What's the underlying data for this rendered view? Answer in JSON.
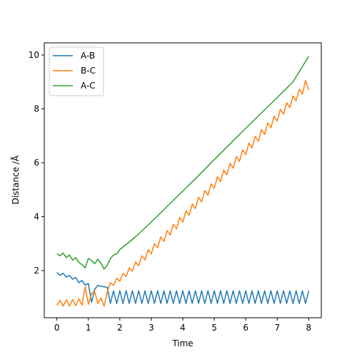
{
  "chart_data": {
    "type": "line",
    "xlabel": "Time",
    "ylabel": "Distance /Å",
    "xlim": [
      -0.4,
      8.4
    ],
    "ylim": [
      0.25,
      10.45
    ],
    "xticks": [
      0,
      1,
      2,
      3,
      4,
      5,
      6,
      7,
      8
    ],
    "yticks": [
      2,
      4,
      6,
      8,
      10
    ],
    "xtick_labels": [
      "0",
      "1",
      "2",
      "3",
      "4",
      "5",
      "6",
      "7",
      "8"
    ],
    "ytick_labels": [
      "2",
      "4",
      "6",
      "8",
      "10"
    ],
    "grid": false,
    "legend_position": "top-left",
    "series": [
      {
        "name": "A-B",
        "color": "#1f77b4",
        "x": [
          0,
          0.1,
          0.2,
          0.3,
          0.4,
          0.5,
          0.6,
          0.7,
          0.8,
          0.9,
          1.0,
          1.1,
          1.2,
          1.3,
          1.4,
          1.5,
          1.6,
          1.7,
          1.8,
          1.9,
          2.0,
          2.1,
          2.2,
          2.3,
          2.4,
          2.5,
          2.6,
          2.7,
          2.8,
          2.9,
          3.0,
          3.1,
          3.2,
          3.3,
          3.4,
          3.5,
          3.6,
          3.7,
          3.8,
          3.9,
          4.0,
          4.1,
          4.2,
          4.3,
          4.4,
          4.5,
          4.6,
          4.7,
          4.8,
          4.9,
          5.0,
          5.1,
          5.2,
          5.3,
          5.4,
          5.5,
          5.6,
          5.7,
          5.8,
          5.9,
          6.0,
          6.1,
          6.2,
          6.3,
          6.4,
          6.5,
          6.6,
          6.7,
          6.8,
          6.9,
          7.0,
          7.1,
          7.2,
          7.3,
          7.4,
          7.5,
          7.6,
          7.7,
          7.8,
          7.9,
          8.0
        ],
        "values": [
          1.93,
          1.82,
          1.9,
          1.76,
          1.82,
          1.68,
          1.74,
          1.55,
          1.63,
          1.46,
          1.52,
          0.82,
          1.3,
          1.45,
          1.42,
          1.4,
          1.38,
          0.78,
          1.25,
          0.78,
          1.25,
          0.78,
          1.25,
          0.78,
          1.25,
          0.78,
          1.25,
          0.78,
          1.25,
          0.78,
          1.25,
          0.78,
          1.25,
          0.78,
          1.25,
          0.78,
          1.25,
          0.78,
          1.25,
          0.78,
          1.25,
          0.78,
          1.25,
          0.78,
          1.25,
          0.78,
          1.25,
          0.78,
          1.25,
          0.78,
          1.25,
          0.78,
          1.25,
          0.78,
          1.25,
          0.78,
          1.25,
          0.78,
          1.25,
          0.78,
          1.25,
          0.78,
          1.25,
          0.78,
          1.25,
          0.78,
          1.25,
          0.78,
          1.25,
          0.78,
          1.25,
          0.78,
          1.25,
          0.78,
          1.25,
          0.78,
          1.25,
          0.78,
          1.25,
          0.78,
          1.25
        ]
      },
      {
        "name": "B-C",
        "color": "#ff7f0e",
        "x": [
          0,
          0.1,
          0.2,
          0.3,
          0.4,
          0.5,
          0.6,
          0.7,
          0.8,
          0.9,
          1.0,
          1.1,
          1.2,
          1.3,
          1.4,
          1.5,
          1.6,
          1.7,
          1.8,
          1.9,
          2.0,
          2.1,
          2.2,
          2.3,
          2.4,
          2.5,
          2.6,
          2.7,
          2.8,
          2.9,
          3.0,
          3.1,
          3.2,
          3.3,
          3.4,
          3.5,
          3.6,
          3.7,
          3.8,
          3.9,
          4.0,
          4.1,
          4.2,
          4.3,
          4.4,
          4.5,
          4.6,
          4.7,
          4.8,
          4.9,
          5.0,
          5.1,
          5.2,
          5.3,
          5.4,
          5.5,
          5.6,
          5.7,
          5.8,
          5.9,
          6.0,
          6.1,
          6.2,
          6.3,
          6.4,
          6.5,
          6.6,
          6.7,
          6.8,
          6.9,
          7.0,
          7.1,
          7.2,
          7.3,
          7.4,
          7.5,
          7.6,
          7.7,
          7.8,
          7.9,
          8.0
        ],
        "values": [
          0.7,
          0.9,
          0.68,
          0.92,
          0.68,
          0.92,
          0.7,
          0.95,
          0.72,
          1.4,
          0.75,
          1.15,
          1.22,
          0.78,
          0.98,
          0.68,
          1.2,
          1.55,
          1.45,
          1.72,
          1.6,
          1.9,
          1.78,
          2.1,
          1.98,
          2.32,
          2.18,
          2.55,
          2.4,
          2.78,
          2.62,
          3.0,
          2.85,
          3.25,
          3.08,
          3.48,
          3.32,
          3.72,
          3.55,
          3.97,
          3.8,
          4.22,
          4.05,
          4.47,
          4.3,
          4.72,
          4.55,
          4.97,
          4.8,
          5.22,
          5.05,
          5.48,
          5.3,
          5.73,
          5.55,
          5.98,
          5.8,
          6.23,
          6.05,
          6.48,
          6.3,
          6.73,
          6.55,
          6.98,
          6.8,
          7.23,
          7.05,
          7.48,
          7.3,
          7.73,
          7.55,
          7.98,
          7.8,
          8.23,
          8.05,
          8.48,
          8.3,
          8.73,
          8.55,
          9.05,
          8.7
        ]
      },
      {
        "name": "A-C",
        "color": "#2ca02c",
        "x": [
          0,
          0.1,
          0.2,
          0.3,
          0.4,
          0.5,
          0.6,
          0.7,
          0.8,
          0.9,
          1.0,
          1.1,
          1.2,
          1.3,
          1.4,
          1.5,
          1.6,
          1.7,
          1.8,
          1.9,
          2.0,
          2.5,
          3.0,
          3.5,
          4.0,
          4.5,
          5.0,
          5.5,
          6.0,
          6.5,
          7.0,
          7.5,
          8.0
        ],
        "values": [
          2.62,
          2.55,
          2.65,
          2.48,
          2.58,
          2.38,
          2.48,
          2.3,
          2.22,
          2.1,
          2.45,
          2.38,
          2.25,
          2.42,
          2.28,
          2.05,
          2.2,
          2.45,
          2.58,
          2.62,
          2.78,
          3.25,
          3.8,
          4.38,
          4.95,
          5.52,
          6.12,
          6.7,
          7.28,
          7.85,
          8.42,
          9.0,
          9.95
        ]
      }
    ]
  }
}
